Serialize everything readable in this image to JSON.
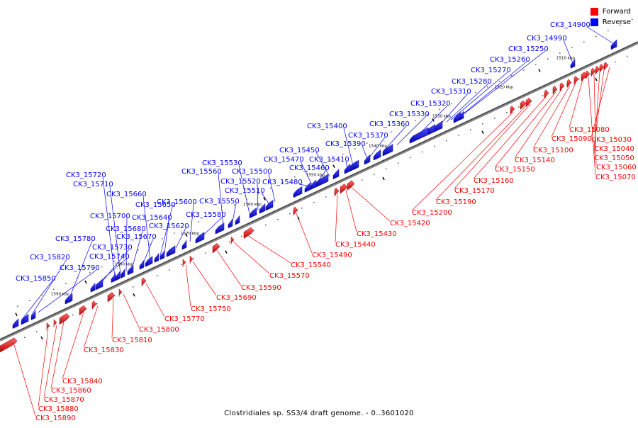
{
  "legend": {
    "forward_label": "Forward",
    "reverse_label": "Reverse",
    "forward_color": "#ff0000",
    "reverse_color": "#0000ff"
  },
  "caption": "Clostridiales sp. SS3/4 draft genome. - 0..3601020",
  "scale": [
    {
      "label": "1510 kbp",
      "kbp": 1510
    },
    {
      "label": "1520 kbp",
      "kbp": 1520
    },
    {
      "label": "1530 kbp",
      "kbp": 1530
    },
    {
      "label": "1540 kbp",
      "kbp": 1540
    },
    {
      "label": "1550 kbp",
      "kbp": 1550
    },
    {
      "label": "1560 kbp",
      "kbp": 1560
    },
    {
      "label": "1570 kbp",
      "kbp": 1570
    },
    {
      "label": "1580 kbp",
      "kbp": 1580
    },
    {
      "label": "1590 kbp",
      "kbp": 1590
    }
  ],
  "reverse_genes": [
    "CK3_14900",
    "CK3_14990",
    "CK3_15250",
    "CK3_15260",
    "CK3_15270",
    "CK3_15280",
    "CK3_15310",
    "CK3_15320",
    "CK3_15330",
    "CK3_15360",
    "CK3_15370",
    "CK3_15390",
    "CK3_15400",
    "CK3_15410",
    "CK3_15450",
    "CK3_15460",
    "CK3_15470",
    "CK3_15480",
    "CK3_15500",
    "CK3_15510",
    "CK3_15520",
    "CK3_15530",
    "CK3_15550",
    "CK3_15560",
    "CK3_15580",
    "CK3_15600",
    "CK3_15620",
    "CK3_15640",
    "CK3_15650",
    "CK3_15660",
    "CK3_15670",
    "CK3_15680",
    "CK3_15700",
    "CK3_15710",
    "CK3_15720",
    "CK3_15730",
    "CK3_15740",
    "CK3_15780",
    "CK3_15790",
    "CK3_15820",
    "CK3_15850"
  ],
  "forward_genes": [
    "CK3_15030",
    "CK3_15040",
    "CK3_15050",
    "CK3_15060",
    "CK3_15070",
    "CK3_15080",
    "CK3_15090",
    "CK3_15100",
    "CK3_15140",
    "CK3_15150",
    "CK3_15160",
    "CK3_15170",
    "CK3_15190",
    "CK3_15200",
    "CK3_15420",
    "CK3_15430",
    "CK3_15440",
    "CK3_15490",
    "CK3_15540",
    "CK3_15570",
    "CK3_15590",
    "CK3_15690",
    "CK3_15750",
    "CK3_15770",
    "CK3_15800",
    "CK3_15810",
    "CK3_15830",
    "CK3_15840",
    "CK3_15860",
    "CK3_15870",
    "CK3_15880",
    "CK3_15890"
  ]
}
